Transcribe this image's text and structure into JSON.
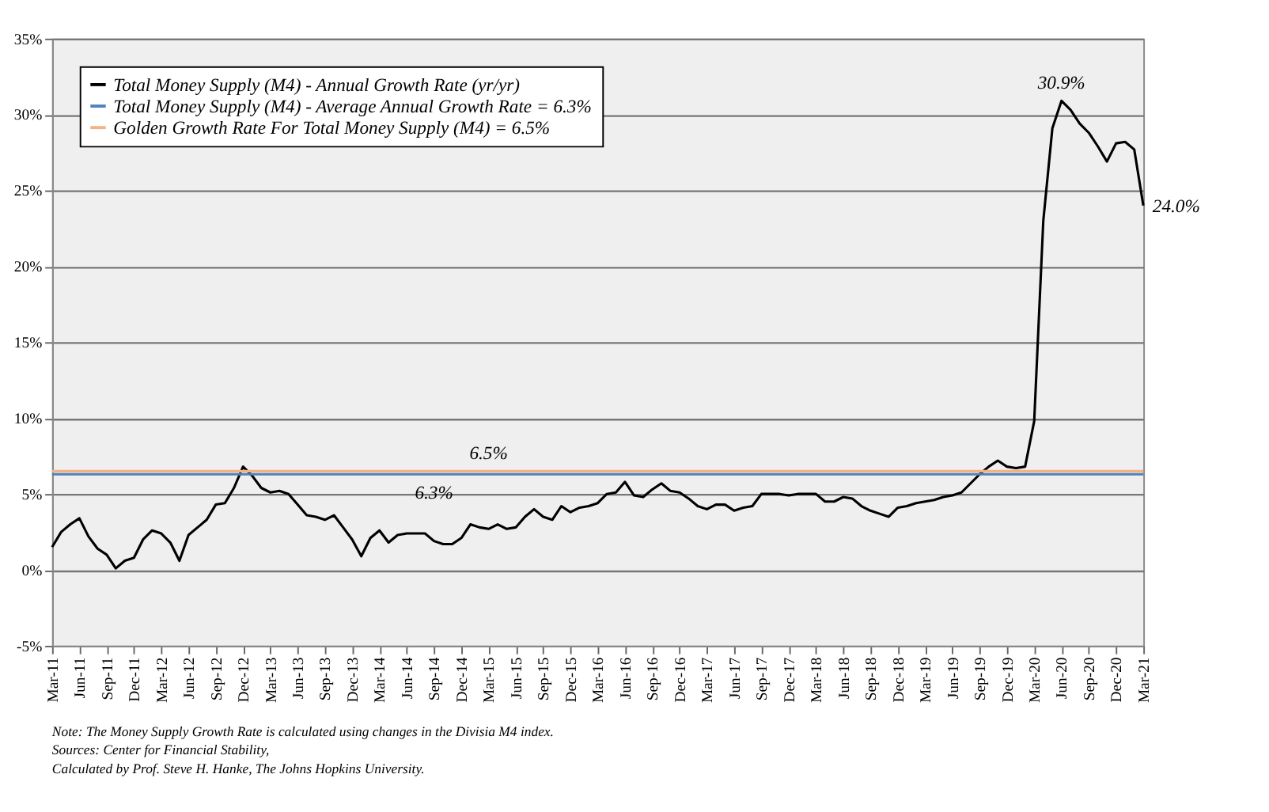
{
  "chart_data": {
    "type": "line",
    "categories": [
      "Mar-11",
      null,
      null,
      "Jun-11",
      null,
      null,
      "Sep-11",
      null,
      null,
      "Dec-11",
      null,
      null,
      "Mar-12",
      null,
      null,
      "Jun-12",
      null,
      null,
      "Sep-12",
      null,
      null,
      "Dec-12",
      null,
      null,
      "Mar-13",
      null,
      null,
      "Jun-13",
      null,
      null,
      "Sep-13",
      null,
      null,
      "Dec-13",
      null,
      null,
      "Mar-14",
      null,
      null,
      "Jun-14",
      null,
      null,
      "Sep-14",
      null,
      null,
      "Dec-14",
      null,
      null,
      "Mar-15",
      null,
      null,
      "Jun-15",
      null,
      null,
      "Sep-15",
      null,
      null,
      "Dec-15",
      null,
      null,
      "Mar-16",
      null,
      null,
      "Jun-16",
      null,
      null,
      "Sep-16",
      null,
      null,
      "Dec-16",
      null,
      null,
      "Mar-17",
      null,
      null,
      "Jun-17",
      null,
      null,
      "Sep-17",
      null,
      null,
      "Dec-17",
      null,
      null,
      "Mar-18",
      null,
      null,
      "Jun-18",
      null,
      null,
      "Sep-18",
      null,
      null,
      "Dec-18",
      null,
      null,
      "Mar-19",
      null,
      null,
      "Jun-19",
      null,
      null,
      "Sep-19",
      null,
      null,
      "Dec-19",
      null,
      null,
      "Mar-20",
      null,
      null,
      "Jun-20",
      null,
      null,
      "Sep-20",
      null,
      null,
      "Dec-20",
      null,
      null,
      "Mar-21"
    ],
    "series": [
      {
        "name": "Total Money Supply (M4) - Annual Growth Rate (yr/yr)",
        "color": "#000000",
        "values": [
          1.5,
          2.5,
          3.0,
          3.4,
          2.2,
          1.4,
          1.0,
          0.1,
          0.6,
          0.8,
          2.0,
          2.6,
          2.4,
          1.8,
          0.6,
          2.3,
          2.8,
          3.3,
          4.3,
          4.4,
          5.4,
          6.8,
          6.2,
          5.4,
          5.1,
          5.2,
          5.0,
          4.3,
          3.6,
          3.5,
          3.3,
          3.6,
          2.8,
          2.0,
          0.9,
          2.1,
          2.6,
          1.8,
          2.3,
          2.4,
          2.4,
          2.4,
          1.9,
          1.7,
          1.7,
          2.1,
          3.0,
          2.8,
          2.7,
          3.0,
          2.7,
          2.8,
          3.5,
          4.0,
          3.5,
          3.3,
          4.2,
          3.8,
          4.1,
          4.2,
          4.4,
          5.0,
          5.1,
          5.8,
          4.9,
          4.8,
          5.3,
          5.7,
          5.2,
          5.1,
          4.7,
          4.2,
          4.0,
          4.3,
          4.3,
          3.9,
          4.1,
          4.2,
          5.0,
          5.0,
          5.0,
          4.9,
          5.0,
          5.0,
          5.0,
          4.5,
          4.5,
          4.8,
          4.7,
          4.2,
          3.9,
          3.7,
          3.5,
          4.1,
          4.2,
          4.4,
          4.5,
          4.6,
          4.8,
          4.9,
          5.1,
          5.7,
          6.3,
          6.8,
          7.2,
          6.8,
          6.7,
          6.8,
          9.8,
          23.0,
          29.1,
          30.9,
          30.3,
          29.4,
          28.8,
          27.9,
          26.9,
          28.1,
          28.2,
          27.7,
          24.0
        ]
      },
      {
        "name": "Total Money Supply (M4) - Average Annual Growth Rate = 6.3%",
        "color": "#4f81bd",
        "values": [
          6.3,
          6.3,
          6.3,
          6.3,
          6.3,
          6.3,
          6.3,
          6.3,
          6.3,
          6.3,
          6.3,
          6.3,
          6.3,
          6.3,
          6.3,
          6.3,
          6.3,
          6.3,
          6.3,
          6.3,
          6.3,
          6.3,
          6.3,
          6.3,
          6.3,
          6.3,
          6.3,
          6.3,
          6.3,
          6.3,
          6.3,
          6.3,
          6.3,
          6.3,
          6.3,
          6.3,
          6.3,
          6.3,
          6.3,
          6.3,
          6.3,
          6.3,
          6.3,
          6.3,
          6.3,
          6.3,
          6.3,
          6.3,
          6.3,
          6.3,
          6.3,
          6.3,
          6.3,
          6.3,
          6.3,
          6.3,
          6.3,
          6.3,
          6.3,
          6.3,
          6.3,
          6.3,
          6.3,
          6.3,
          6.3,
          6.3,
          6.3,
          6.3,
          6.3,
          6.3,
          6.3,
          6.3,
          6.3,
          6.3,
          6.3,
          6.3,
          6.3,
          6.3,
          6.3,
          6.3,
          6.3,
          6.3,
          6.3,
          6.3,
          6.3,
          6.3,
          6.3,
          6.3,
          6.3,
          6.3,
          6.3,
          6.3,
          6.3,
          6.3,
          6.3,
          6.3,
          6.3,
          6.3,
          6.3,
          6.3,
          6.3,
          6.3,
          6.3,
          6.3,
          6.3,
          6.3,
          6.3,
          6.3,
          6.3,
          6.3,
          6.3,
          6.3,
          6.3,
          6.3,
          6.3,
          6.3,
          6.3,
          6.3,
          6.3,
          6.3,
          6.3
        ]
      },
      {
        "name": "Golden Growth Rate For Total Money Supply (M4) = 6.5%",
        "color": "#f4b183",
        "values": [
          6.5,
          6.5,
          6.5,
          6.5,
          6.5,
          6.5,
          6.5,
          6.5,
          6.5,
          6.5,
          6.5,
          6.5,
          6.5,
          6.5,
          6.5,
          6.5,
          6.5,
          6.5,
          6.5,
          6.5,
          6.5,
          6.5,
          6.5,
          6.5,
          6.5,
          6.5,
          6.5,
          6.5,
          6.5,
          6.5,
          6.5,
          6.5,
          6.5,
          6.5,
          6.5,
          6.5,
          6.5,
          6.5,
          6.5,
          6.5,
          6.5,
          6.5,
          6.5,
          6.5,
          6.5,
          6.5,
          6.5,
          6.5,
          6.5,
          6.5,
          6.5,
          6.5,
          6.5,
          6.5,
          6.5,
          6.5,
          6.5,
          6.5,
          6.5,
          6.5,
          6.5,
          6.5,
          6.5,
          6.5,
          6.5,
          6.5,
          6.5,
          6.5,
          6.5,
          6.5,
          6.5,
          6.5,
          6.5,
          6.5,
          6.5,
          6.5,
          6.5,
          6.5,
          6.5,
          6.5,
          6.5,
          6.5,
          6.5,
          6.5,
          6.5,
          6.5,
          6.5,
          6.5,
          6.5,
          6.5,
          6.5,
          6.5,
          6.5,
          6.5,
          6.5,
          6.5,
          6.5,
          6.5,
          6.5,
          6.5,
          6.5,
          6.5,
          6.5,
          6.5,
          6.5,
          6.5,
          6.5,
          6.5,
          6.5,
          6.5,
          6.5,
          6.5,
          6.5,
          6.5,
          6.5,
          6.5,
          6.5,
          6.5,
          6.5,
          6.5,
          6.5
        ]
      }
    ],
    "ylim": [
      -5,
      35
    ],
    "yticks": [
      {
        "value": -5,
        "label": "-5%"
      },
      {
        "value": 0,
        "label": "0%"
      },
      {
        "value": 5,
        "label": "5%"
      },
      {
        "value": 10,
        "label": "10%"
      },
      {
        "value": 15,
        "label": "15%"
      },
      {
        "value": 20,
        "label": "20%"
      },
      {
        "value": 25,
        "label": "25%"
      },
      {
        "value": 30,
        "label": "30%"
      },
      {
        "value": 35,
        "label": "35%"
      }
    ],
    "grid": "y",
    "legend": "top left",
    "line_style": "solid",
    "marker": "none",
    "annotations": [
      {
        "text": "30.9%",
        "x": "Jun-20",
        "y": 30.9
      },
      {
        "text": "24.0%",
        "x": "Mar-21",
        "y": 24.0
      },
      {
        "text": "6.5%",
        "x": "Mar-15",
        "y": 6.5
      },
      {
        "text": "6.3%",
        "x": "Sep-14",
        "y": 6.3
      },
      "Note: The Money Supply Growth Rate is calculated using changes in the Divisia M4 index.",
      "Sources: Center for Financial Stability,",
      "Calculated by Prof. Steve H. Hanke, The Johns Hopkins University."
    ]
  }
}
